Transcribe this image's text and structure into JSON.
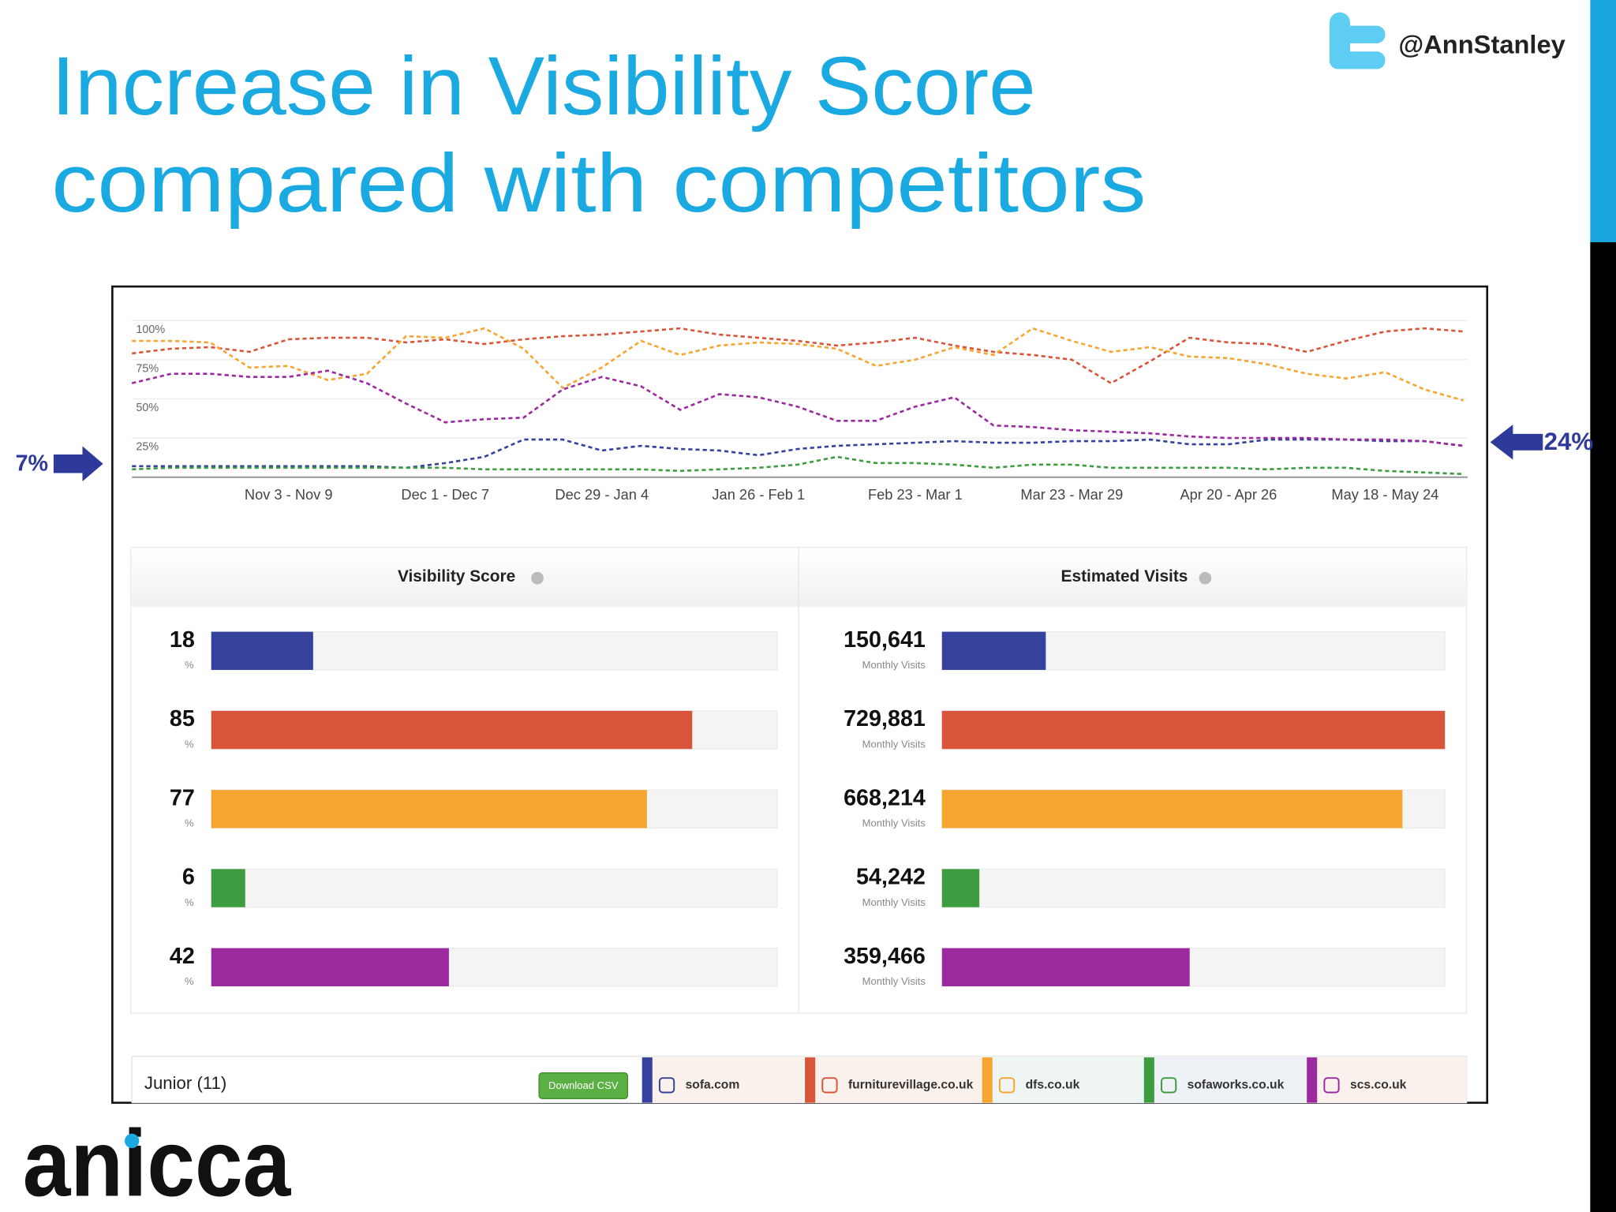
{
  "title": [
    "Increase in Visibility Score",
    "compared with competitors"
  ],
  "handle": "@AnnStanley",
  "logo": "anicca",
  "table": {
    "group": "Junior (11)",
    "button": "Download CSV"
  },
  "chart_data": [
    {
      "type": "line",
      "categories": [
        null,
        null,
        null,
        null,
        "Nov 3 - Nov 9",
        null,
        null,
        null,
        "Dec 1 - Dec 7",
        null,
        null,
        null,
        "Dec 29 - Jan 4",
        null,
        null,
        null,
        "Jan 26 - Feb 1",
        null,
        null,
        null,
        "Feb 23 - Mar 1",
        null,
        null,
        null,
        "Mar 23 - Mar 29",
        null,
        null,
        null,
        "Apr 20 - Apr 26",
        null,
        null,
        null,
        "May 18 - May 24",
        null,
        null
      ],
      "ylim": [
        0,
        100
      ],
      "yticks": [
        {
          "value": 25,
          "label": "25%"
        },
        {
          "value": 50,
          "label": "50%"
        },
        {
          "value": 75,
          "label": "75%"
        },
        {
          "value": 100,
          "label": "100%"
        }
      ],
      "grid": true,
      "annotations": [
        "7%",
        "24%"
      ],
      "series": [
        {
          "name": "sofa.com",
          "color": "#34429e",
          "values": [
            7,
            7,
            7,
            7,
            7,
            7,
            7,
            6,
            9,
            13,
            24,
            24,
            17,
            20,
            18,
            17,
            14,
            18,
            20,
            21,
            22,
            23,
            22,
            22,
            23,
            23,
            24,
            21,
            21,
            24,
            24,
            24,
            23,
            23,
            20
          ]
        },
        {
          "name": "furniturevillage.co.uk",
          "color": "#d9553a",
          "values": [
            79,
            82,
            83,
            80,
            88,
            89,
            89,
            86,
            88,
            85,
            88,
            90,
            91,
            93,
            95,
            91,
            89,
            87,
            84,
            86,
            89,
            84,
            80,
            78,
            75,
            60,
            74,
            89,
            86,
            85,
            80,
            87,
            93,
            95,
            93
          ]
        },
        {
          "name": "dfs.co.uk",
          "color": "#f6a531",
          "values": [
            87,
            87,
            86,
            70,
            71,
            62,
            66,
            90,
            89,
            95,
            82,
            57,
            70,
            87,
            78,
            84,
            86,
            85,
            82,
            71,
            75,
            83,
            78,
            95,
            87,
            80,
            83,
            77,
            76,
            72,
            66,
            63,
            67,
            56,
            49
          ]
        },
        {
          "name": "sofaworks.co.uk",
          "color": "#3c9c3f",
          "values": [
            5,
            6,
            6,
            6,
            6,
            6,
            6,
            6,
            6,
            5,
            5,
            5,
            5,
            5,
            4,
            5,
            6,
            8,
            13,
            9,
            9,
            8,
            6,
            8,
            8,
            6,
            6,
            6,
            6,
            5,
            6,
            6,
            4,
            3,
            2
          ]
        },
        {
          "name": "scs.co.uk",
          "color": "#9b2a9f",
          "values": [
            60,
            66,
            66,
            64,
            64,
            68,
            60,
            47,
            35,
            37,
            38,
            56,
            64,
            58,
            43,
            53,
            51,
            45,
            36,
            36,
            45,
            51,
            33,
            32,
            30,
            29,
            28,
            26,
            25,
            25,
            25,
            24,
            24,
            23,
            20
          ]
        }
      ]
    },
    {
      "type": "hbar",
      "title": "Visibility Score",
      "unit": "%",
      "values": [
        18,
        85,
        77,
        6,
        42
      ],
      "colors": [
        "#34429e",
        "#d9553a",
        "#f6a531",
        "#3c9c3f",
        "#9b2a9f"
      ],
      "xlim": [
        0,
        100
      ]
    },
    {
      "type": "hbar",
      "title": "Estimated Visits",
      "unit": "Monthly Visits",
      "values": [
        150641,
        729881,
        668214,
        54242,
        359466
      ],
      "value_labels": [
        "150,641",
        "729,881",
        "668,214",
        "54,242",
        "359,466"
      ],
      "colors": [
        "#34429e",
        "#d9553a",
        "#f6a531",
        "#3c9c3f",
        "#9b2a9f"
      ],
      "xlim": [
        0,
        729881
      ]
    }
  ]
}
